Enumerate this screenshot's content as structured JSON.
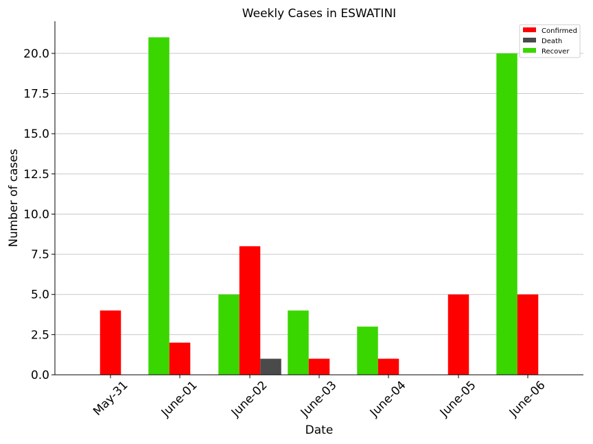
{
  "chart_data": {
    "type": "bar",
    "title": "Weekly Cases in ESWATINI",
    "xlabel": "Date",
    "ylabel": "Number of cases",
    "categories": [
      "May-31",
      "June-01",
      "June-02",
      "June-03",
      "June-04",
      "June-05",
      "June-06"
    ],
    "series": [
      {
        "name": "Recover",
        "color": "#3ad600",
        "values": [
          0,
          21,
          5,
          4,
          3,
          0,
          20
        ]
      },
      {
        "name": "Confirmed",
        "color": "#ff0000",
        "values": [
          4,
          2,
          8,
          1,
          1,
          5,
          5
        ]
      },
      {
        "name": "Death",
        "color": "#4a4a4a",
        "values": [
          0,
          0,
          1,
          0,
          0,
          0,
          0
        ]
      }
    ],
    "legend_order": [
      "Confirmed",
      "Death",
      "Recover"
    ],
    "ylim": [
      0,
      22
    ],
    "yticks": [
      0,
      2.5,
      5,
      7.5,
      10,
      12.5,
      15,
      17.5,
      20
    ],
    "ytick_labels": [
      "0.0",
      "2.5",
      "5.0",
      "7.5",
      "10.0",
      "12.5",
      "15.0",
      "17.5",
      "20.0"
    ],
    "grid": "horizontal",
    "legend_position": "top-right"
  }
}
